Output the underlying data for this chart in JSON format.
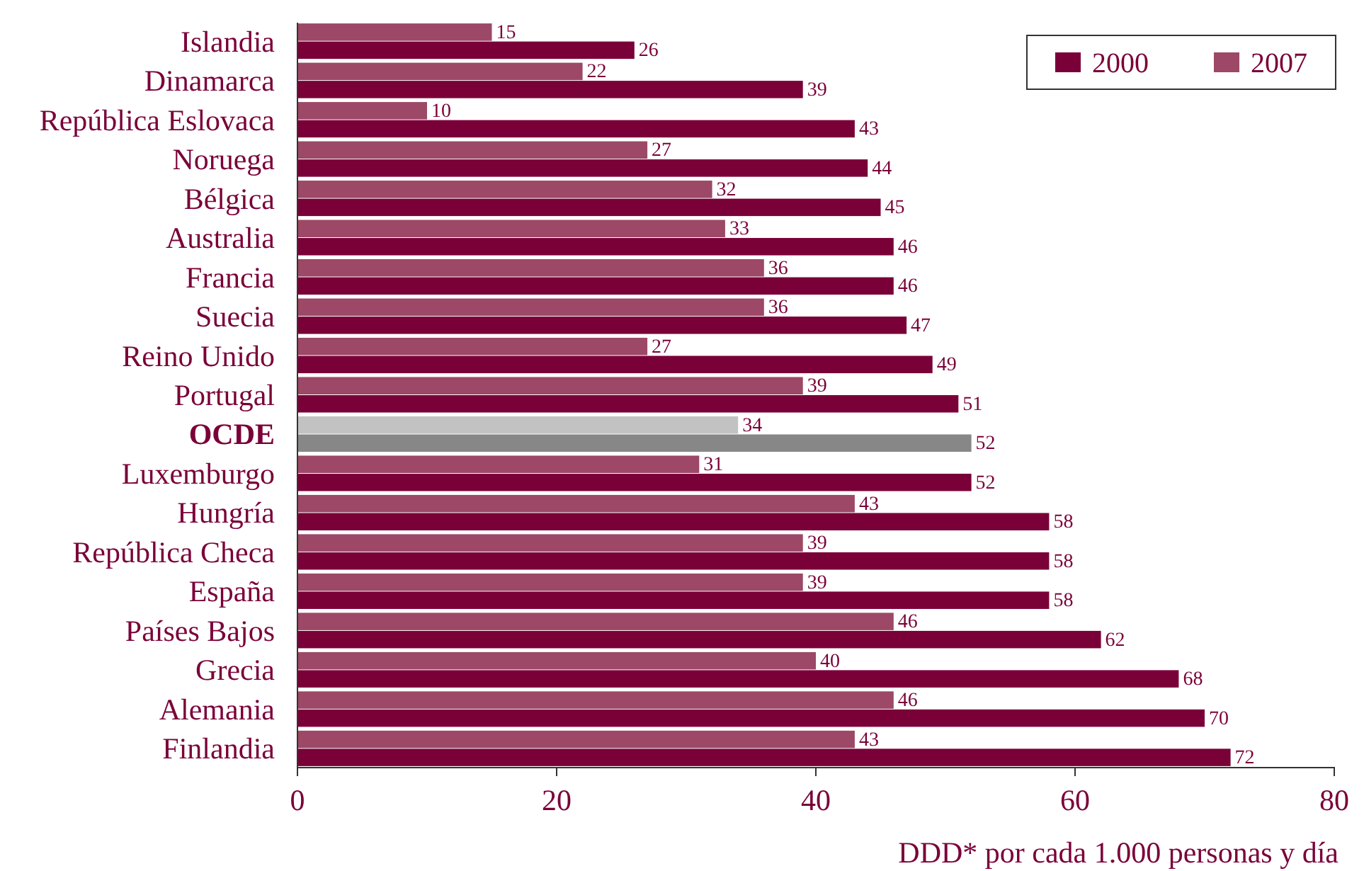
{
  "chart_data": {
    "type": "bar",
    "orientation": "horizontal",
    "xlabel": "DDD* por cada 1.000 personas y día",
    "categories": [
      "Islandia",
      "Dinamarca",
      "República Eslovaca",
      "Noruega",
      "Bélgica",
      "Australia",
      "Francia",
      "Suecia",
      "Reino Unido",
      "Portugal",
      "OCDE",
      "Luxemburgo",
      "Hungría",
      "República Checa",
      "España",
      "Países Bajos",
      "Grecia",
      "Alemania",
      "Finlandia"
    ],
    "series": [
      {
        "name": "2000",
        "color": "#7a0038",
        "colors": [
          "#7a0038",
          "#7a0038",
          "#7a0038",
          "#7a0038",
          "#7a0038",
          "#7a0038",
          "#7a0038",
          "#7a0038",
          "#7a0038",
          "#7a0038",
          "#878787",
          "#7a0038",
          "#7a0038",
          "#7a0038",
          "#7a0038",
          "#7a0038",
          "#7a0038",
          "#7a0038",
          "#7a0038"
        ],
        "values": [
          26,
          39,
          43,
          44,
          45,
          46,
          46,
          47,
          49,
          51,
          52,
          52,
          58,
          58,
          58,
          62,
          68,
          70,
          72
        ]
      },
      {
        "name": "2007",
        "color": "#9c4866",
        "colors": [
          "#9c4866",
          "#9c4866",
          "#9c4866",
          "#9c4866",
          "#9c4866",
          "#9c4866",
          "#9c4866",
          "#9c4866",
          "#9c4866",
          "#9c4866",
          "#c2c2c2",
          "#9c4866",
          "#9c4866",
          "#9c4866",
          "#9c4866",
          "#9c4866",
          "#9c4866",
          "#9c4866",
          "#9c4866"
        ],
        "values": [
          15,
          22,
          10,
          27,
          32,
          33,
          36,
          36,
          27,
          39,
          34,
          31,
          43,
          39,
          39,
          46,
          40,
          46,
          43
        ]
      }
    ],
    "xlim": [
      0,
      80
    ],
    "xticks": [
      0,
      20,
      40,
      60,
      80
    ],
    "data_labels": true,
    "legend": "top right",
    "grid": false
  }
}
